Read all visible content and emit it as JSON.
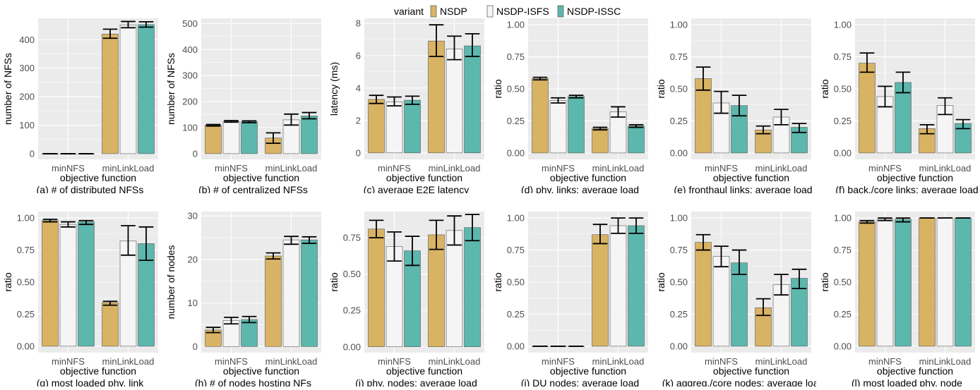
{
  "legend": {
    "title": "variant",
    "entries": [
      {
        "name": "NSDP",
        "color": "#d9b364"
      },
      {
        "name": "NSDP-ISFS",
        "color": "#f5f5f5"
      },
      {
        "name": "NSDP-ISSC",
        "color": "#5cb7ad"
      }
    ]
  },
  "colors": {
    "panel_bg": "#ebebeb",
    "grid": "#ffffff",
    "bar_outline": "#555555",
    "error_bar": "#000000"
  },
  "chart_data": [
    {
      "type": "bar",
      "caption": "(a) # of distributed NFSs",
      "xlabel": "objective function",
      "ylabel": "number of NFSs",
      "categories": [
        "minNFS",
        "minLinkLoad"
      ],
      "ylim": [
        -20,
        475
      ],
      "yticks": [
        0,
        100,
        200,
        300,
        400
      ],
      "ytick_labels": [
        "0",
        "100",
        "200",
        "300",
        "400"
      ],
      "series": [
        {
          "name": "NSDP",
          "values": [
            0,
            420
          ],
          "err": [
            [
              0,
              0
            ],
            [
              405,
              437
            ]
          ]
        },
        {
          "name": "NSDP-ISFS",
          "values": [
            0,
            452
          ],
          "err": [
            [
              0,
              0
            ],
            [
              442,
              464
            ]
          ]
        },
        {
          "name": "NSDP-ISSC",
          "values": [
            0,
            453
          ],
          "err": [
            [
              0,
              0
            ],
            [
              444,
              463
            ]
          ]
        }
      ]
    },
    {
      "type": "bar",
      "caption": "(b) # of centralized NFSs",
      "xlabel": "objective function",
      "ylabel": "number of NFSs",
      "categories": [
        "minNFS",
        "minLinkLoad"
      ],
      "ylim": [
        -22,
        520
      ],
      "yticks": [
        0,
        100,
        200,
        300,
        400,
        500
      ],
      "ytick_labels": [
        "0",
        "100",
        "200",
        "300",
        "400",
        "500"
      ],
      "series": [
        {
          "name": "NSDP",
          "values": [
            109,
            60
          ],
          "err": [
            [
              106,
              112
            ],
            [
              40,
              80
            ]
          ]
        },
        {
          "name": "NSDP-ISFS",
          "values": [
            124,
            130
          ],
          "err": [
            [
              121,
              127
            ],
            [
              110,
              152
            ]
          ]
        },
        {
          "name": "NSDP-ISSC",
          "values": [
            123,
            145
          ],
          "err": [
            [
              119,
              126
            ],
            [
              134,
              158
            ]
          ]
        }
      ]
    },
    {
      "type": "bar",
      "caption": "(c) average E2E latency",
      "xlabel": "objective function",
      "ylabel": "latency (ms)",
      "categories": [
        "minNFS",
        "minLinkLoad"
      ],
      "ylim": [
        -0.4,
        8.3
      ],
      "yticks": [
        0,
        2,
        4,
        6,
        8
      ],
      "ytick_labels": [
        "0",
        "2",
        "4",
        "6",
        "8"
      ],
      "series": [
        {
          "name": "NSDP",
          "values": [
            3.3,
            6.9
          ],
          "err": [
            [
              3.05,
              3.55
            ],
            [
              5.95,
              7.9
            ]
          ]
        },
        {
          "name": "NSDP-ISFS",
          "values": [
            3.15,
            6.4
          ],
          "err": [
            [
              2.9,
              3.45
            ],
            [
              5.75,
              7.2
            ]
          ]
        },
        {
          "name": "NSDP-ISSC",
          "values": [
            3.25,
            6.6
          ],
          "err": [
            [
              3.0,
              3.5
            ],
            [
              5.95,
              7.35
            ]
          ]
        }
      ]
    },
    {
      "type": "bar",
      "caption": "(d) phy. links: average load",
      "xlabel": "objective function",
      "ylabel": "ratio",
      "categories": [
        "minNFS",
        "minLinkLoad"
      ],
      "ylim": [
        -0.05,
        1.05
      ],
      "yticks": [
        0,
        0.25,
        0.5,
        0.75,
        1
      ],
      "ytick_labels": [
        "0.00",
        "0.25",
        "0.50",
        "0.75",
        "1.00"
      ],
      "series": [
        {
          "name": "NSDP",
          "values": [
            0.58,
            0.19
          ],
          "err": [
            [
              0.57,
              0.59
            ],
            [
              0.18,
              0.2
            ]
          ]
        },
        {
          "name": "NSDP-ISFS",
          "values": [
            0.41,
            0.32
          ],
          "err": [
            [
              0.39,
              0.43
            ],
            [
              0.28,
              0.36
            ]
          ]
        },
        {
          "name": "NSDP-ISSC",
          "values": [
            0.44,
            0.21
          ],
          "err": [
            [
              0.43,
              0.45
            ],
            [
              0.2,
              0.22
            ]
          ]
        }
      ]
    },
    {
      "type": "bar",
      "caption": "(e) fronthaul links: average load",
      "xlabel": "objective function",
      "ylabel": "ratio",
      "categories": [
        "minNFS",
        "minLinkLoad"
      ],
      "ylim": [
        -0.05,
        1.05
      ],
      "yticks": [
        0,
        0.25,
        0.5,
        0.75,
        1
      ],
      "ytick_labels": [
        "0.00",
        "0.25",
        "0.50",
        "0.75",
        "1.00"
      ],
      "series": [
        {
          "name": "NSDP",
          "values": [
            0.58,
            0.18
          ],
          "err": [
            [
              0.49,
              0.67
            ],
            [
              0.15,
              0.21
            ]
          ]
        },
        {
          "name": "NSDP-ISFS",
          "values": [
            0.39,
            0.28
          ],
          "err": [
            [
              0.31,
              0.48
            ],
            [
              0.22,
              0.34
            ]
          ]
        },
        {
          "name": "NSDP-ISSC",
          "values": [
            0.37,
            0.2
          ],
          "err": [
            [
              0.29,
              0.45
            ],
            [
              0.16,
              0.23
            ]
          ]
        }
      ]
    },
    {
      "type": "bar",
      "caption": "(f) back./core links: average load",
      "xlabel": "objective function",
      "ylabel": "ratio",
      "categories": [
        "minNFS",
        "minLinkLoad"
      ],
      "ylim": [
        -0.05,
        1.05
      ],
      "yticks": [
        0,
        0.25,
        0.5,
        0.75,
        1
      ],
      "ytick_labels": [
        "0.00",
        "0.25",
        "0.50",
        "0.75",
        "1.00"
      ],
      "series": [
        {
          "name": "NSDP",
          "values": [
            0.7,
            0.19
          ],
          "err": [
            [
              0.63,
              0.78
            ],
            [
              0.15,
              0.22
            ]
          ]
        },
        {
          "name": "NSDP-ISFS",
          "values": [
            0.44,
            0.37
          ],
          "err": [
            [
              0.36,
              0.52
            ],
            [
              0.3,
              0.43
            ]
          ]
        },
        {
          "name": "NSDP-ISSC",
          "values": [
            0.55,
            0.23
          ],
          "err": [
            [
              0.47,
              0.63
            ],
            [
              0.19,
              0.26
            ]
          ]
        }
      ]
    },
    {
      "type": "bar",
      "caption": "(g)  most loaded phy. link",
      "xlabel": "objective function",
      "ylabel": "ratio",
      "categories": [
        "minNFS",
        "minLinkLoad"
      ],
      "ylim": [
        -0.05,
        1.05
      ],
      "yticks": [
        0,
        0.25,
        0.5,
        0.75,
        1
      ],
      "ytick_labels": [
        "0.00",
        "0.25",
        "0.50",
        "0.75",
        "1.00"
      ],
      "series": [
        {
          "name": "NSDP",
          "values": [
            0.98,
            0.34
          ],
          "err": [
            [
              0.97,
              0.99
            ],
            [
              0.32,
              0.35
            ]
          ]
        },
        {
          "name": "NSDP-ISFS",
          "values": [
            0.95,
            0.82
          ],
          "err": [
            [
              0.93,
              0.97
            ],
            [
              0.71,
              0.94
            ]
          ]
        },
        {
          "name": "NSDP-ISSC",
          "values": [
            0.97,
            0.8
          ],
          "err": [
            [
              0.95,
              0.98
            ],
            [
              0.67,
              0.93
            ]
          ]
        }
      ]
    },
    {
      "type": "bar",
      "caption": "(h) # of nodes hosting NFs",
      "xlabel": "objective function",
      "ylabel": "number of nodes",
      "categories": [
        "minNFS",
        "minLinkLoad"
      ],
      "ylim": [
        -1.4,
        31
      ],
      "yticks": [
        0,
        10,
        20,
        30
      ],
      "ytick_labels": [
        "0",
        "10",
        "20",
        "30"
      ],
      "series": [
        {
          "name": "NSDP",
          "values": [
            3.8,
            20.8
          ],
          "err": [
            [
              3.2,
              4.4
            ],
            [
              20.1,
              21.5
            ]
          ]
        },
        {
          "name": "NSDP-ISFS",
          "values": [
            6.0,
            24.5
          ],
          "err": [
            [
              5.2,
              6.7
            ],
            [
              23.5,
              25.3
            ]
          ]
        },
        {
          "name": "NSDP-ISSC",
          "values": [
            6.2,
            24.5
          ],
          "err": [
            [
              5.5,
              6.9
            ],
            [
              23.7,
              25.2
            ]
          ]
        }
      ]
    },
    {
      "type": "bar",
      "caption": "(i) phy. nodes: average load",
      "xlabel": "objective function",
      "ylabel": "ratio",
      "categories": [
        "minNFS",
        "minLinkLoad"
      ],
      "ylim": [
        -0.04,
        0.93
      ],
      "yticks": [
        0,
        0.25,
        0.5,
        0.75
      ],
      "ytick_labels": [
        "0.00",
        "0.25",
        "0.50",
        "0.75"
      ],
      "series": [
        {
          "name": "NSDP",
          "values": [
            0.81,
            0.77
          ],
          "err": [
            [
              0.75,
              0.87
            ],
            [
              0.67,
              0.87
            ]
          ]
        },
        {
          "name": "NSDP-ISFS",
          "values": [
            0.69,
            0.8
          ],
          "err": [
            [
              0.59,
              0.79
            ],
            [
              0.7,
              0.9
            ]
          ]
        },
        {
          "name": "NSDP-ISSC",
          "values": [
            0.66,
            0.82
          ],
          "err": [
            [
              0.56,
              0.76
            ],
            [
              0.73,
              0.91
            ]
          ]
        }
      ]
    },
    {
      "type": "bar",
      "caption": "(j) DU nodes: average load",
      "xlabel": "objective function",
      "ylabel": "ratio",
      "categories": [
        "minNFS",
        "minLinkLoad"
      ],
      "ylim": [
        -0.05,
        1.05
      ],
      "yticks": [
        0,
        0.25,
        0.5,
        0.75,
        1
      ],
      "ytick_labels": [
        "0.00",
        "0.25",
        "0.50",
        "0.75",
        "1.00"
      ],
      "series": [
        {
          "name": "NSDP",
          "values": [
            0,
            0.87
          ],
          "err": [
            [
              0,
              0
            ],
            [
              0.8,
              0.95
            ]
          ]
        },
        {
          "name": "NSDP-ISFS",
          "values": [
            0,
            0.94
          ],
          "err": [
            [
              0,
              0
            ],
            [
              0.88,
              1.0
            ]
          ]
        },
        {
          "name": "NSDP-ISSC",
          "values": [
            0,
            0.94
          ],
          "err": [
            [
              0,
              0
            ],
            [
              0.88,
              1.0
            ]
          ]
        }
      ]
    },
    {
      "type": "bar",
      "caption": "(k) aggreg./core nodes: average load",
      "xlabel": "objective function",
      "ylabel": "ratio",
      "categories": [
        "minNFS",
        "minLinkLoad"
      ],
      "ylim": [
        -0.05,
        1.05
      ],
      "yticks": [
        0,
        0.25,
        0.5,
        0.75,
        1
      ],
      "ytick_labels": [
        "0.00",
        "0.25",
        "0.50",
        "0.75",
        "1.00"
      ],
      "series": [
        {
          "name": "NSDP",
          "values": [
            0.81,
            0.3
          ],
          "err": [
            [
              0.75,
              0.87
            ],
            [
              0.24,
              0.37
            ]
          ]
        },
        {
          "name": "NSDP-ISFS",
          "values": [
            0.7,
            0.48
          ],
          "err": [
            [
              0.62,
              0.78
            ],
            [
              0.4,
              0.56
            ]
          ]
        },
        {
          "name": "NSDP-ISSC",
          "values": [
            0.65,
            0.53
          ],
          "err": [
            [
              0.56,
              0.75
            ],
            [
              0.45,
              0.6
            ]
          ]
        }
      ]
    },
    {
      "type": "bar",
      "caption": "(l) most loaded phy. node",
      "xlabel": "objective function",
      "ylabel": "ratio",
      "categories": [
        "minNFS",
        "minLinkLoad"
      ],
      "ylim": [
        -0.05,
        1.05
      ],
      "yticks": [
        0,
        0.25,
        0.5,
        0.75,
        1
      ],
      "ytick_labels": [
        "0.00",
        "0.25",
        "0.50",
        "0.75",
        "1.00"
      ],
      "series": [
        {
          "name": "NSDP",
          "values": [
            0.97,
            1.0
          ],
          "err": [
            [
              0.96,
              0.98
            ],
            [
              1.0,
              1.0
            ]
          ]
        },
        {
          "name": "NSDP-ISFS",
          "values": [
            0.99,
            1.0
          ],
          "err": [
            [
              0.98,
              1.0
            ],
            [
              1.0,
              1.0
            ]
          ]
        },
        {
          "name": "NSDP-ISSC",
          "values": [
            0.99,
            1.0
          ],
          "err": [
            [
              0.97,
              1.0
            ],
            [
              1.0,
              1.0
            ]
          ]
        }
      ]
    }
  ]
}
